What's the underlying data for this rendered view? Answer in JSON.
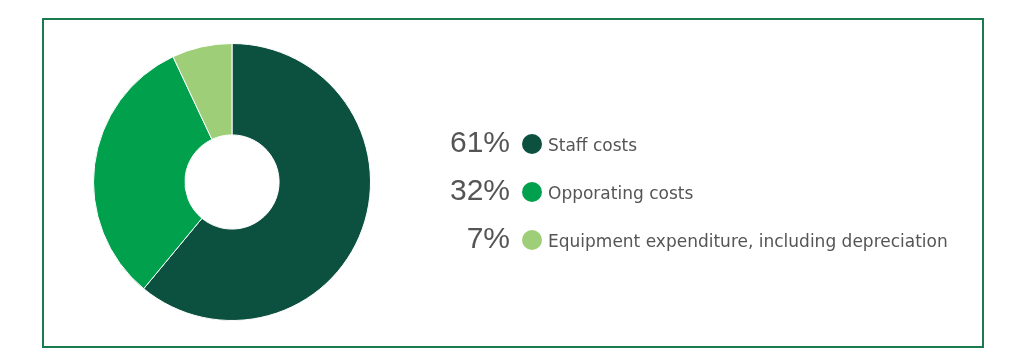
{
  "chart_data": {
    "type": "donut",
    "categories": [
      "Staff costs",
      "Opporating costs",
      "Equipment expenditure, including depreciation"
    ],
    "values": [
      61,
      32,
      7
    ],
    "colors": [
      "#0c5040",
      "#00a04c",
      "#9ecf78"
    ],
    "value_labels": [
      "61%",
      "32%",
      "7%"
    ],
    "legend": "right"
  }
}
